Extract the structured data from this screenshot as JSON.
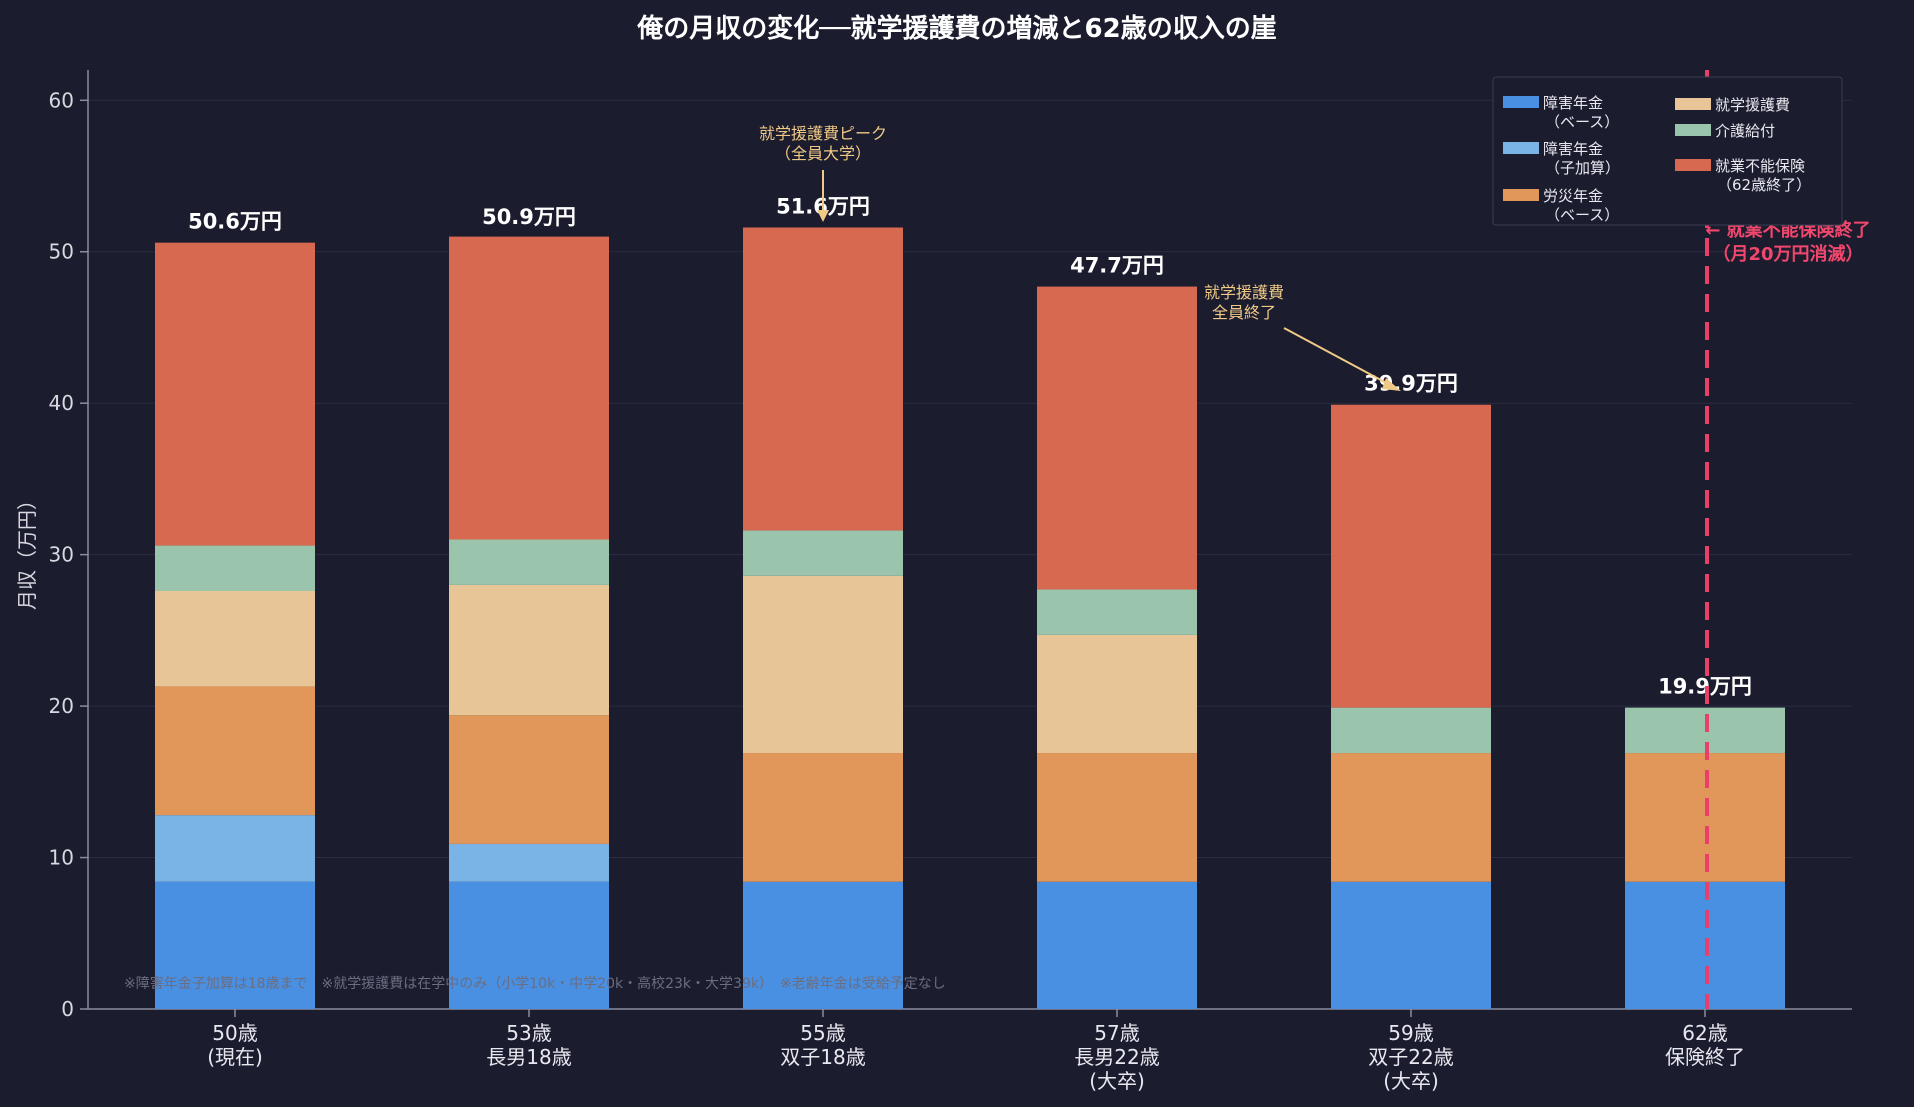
{
  "chart_data": {
    "type": "bar",
    "stacked": true,
    "title": "俺の月収の変化──就学援護費の増減と62歳の収入の崖",
    "ylabel": "月収（万円）",
    "xlabel": "",
    "ylim": [
      0,
      62
    ],
    "yticks": [
      0,
      10,
      20,
      30,
      40,
      50,
      60
    ],
    "grid": true,
    "legend_position": "top-right",
    "categories": [
      [
        "50歳",
        "(現在)"
      ],
      [
        "53歳",
        "長男18歳"
      ],
      [
        "55歳",
        "双子18歳"
      ],
      [
        "57歳",
        "長男22歳",
        "(大卒)"
      ],
      [
        "59歳",
        "双子22歳",
        "(大卒)"
      ],
      [
        "62歳",
        "保険終了"
      ]
    ],
    "series": [
      {
        "name": "障害年金（ベース）",
        "legend_lines": [
          "障害年金",
          "（ベース）"
        ],
        "color": "#4a90e2",
        "values": [
          8.4,
          8.4,
          8.4,
          8.4,
          8.4,
          8.4
        ]
      },
      {
        "name": "障害年金（子加算）",
        "legend_lines": [
          "障害年金",
          "（子加算）"
        ],
        "color": "#7ab3e6",
        "values": [
          4.4,
          2.5,
          0,
          0,
          0,
          0
        ]
      },
      {
        "name": "労災年金（ベース）",
        "legend_lines": [
          "労災年金",
          "（ベース）"
        ],
        "color": "#e2975a",
        "values": [
          8.5,
          8.5,
          8.5,
          8.5,
          8.5,
          8.5
        ]
      },
      {
        "name": "就学援護費",
        "legend_lines": [
          "就学援護費"
        ],
        "color": "#e8c596",
        "values": [
          6.3,
          8.6,
          11.7,
          7.8,
          0,
          0
        ]
      },
      {
        "name": "介護給付",
        "legend_lines": [
          "介護給付"
        ],
        "color": "#9bc4ad",
        "values": [
          3.0,
          3.0,
          3.0,
          3.0,
          3.0,
          3.0
        ]
      },
      {
        "name": "就業不能保険（62歳終了）",
        "legend_lines": [
          "就業不能保険",
          "（62歳終了）"
        ],
        "color": "#d6694f",
        "values": [
          20.0,
          20.0,
          20.0,
          20.0,
          20.0,
          0
        ]
      }
    ],
    "totals": [
      50.6,
      50.9,
      51.6,
      47.7,
      39.9,
      19.9
    ],
    "total_labels": [
      "50.6万円",
      "50.9万円",
      "51.6万円",
      "47.7万円",
      "39.9万円",
      "19.9万円"
    ],
    "annotations": [
      {
        "text_lines": [
          "就学援護費ピーク",
          "（全員大学）"
        ],
        "color": "#f0c987",
        "target_category": 2
      },
      {
        "text_lines": [
          "就学援護費",
          "全員終了"
        ],
        "color": "#f0c987",
        "target_category": 4
      },
      {
        "text_lines": [
          "← 就業不能保険終了",
          "（月20万円消滅）"
        ],
        "color": "#f2476d",
        "target_category": 5
      }
    ],
    "footnote": "※障害年金子加算は18歳まで　※就学援護費は在学中のみ（小学10k・中学20k・高校23k・大学39k）　※老齢年金は受給予定なし"
  }
}
